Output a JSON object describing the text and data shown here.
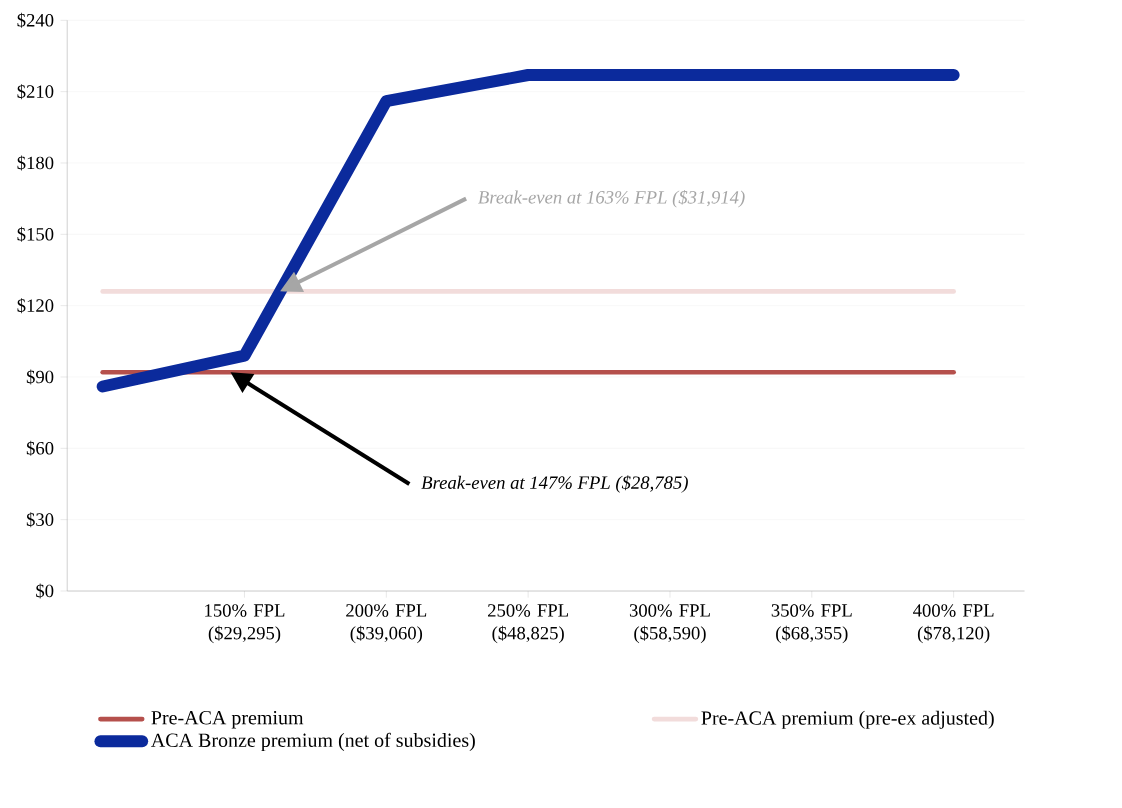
{
  "chart_data": {
    "type": "line",
    "categories": [
      null,
      "150% FPL ($29,295)",
      "200% FPL ($39,060)",
      "250% FPL ($48,825)",
      "300% FPL ($58,590)",
      "350% FPL ($68,355)",
      "400% FPL ($78,120)"
    ],
    "series": [
      {
        "name": "Pre-ACA premium",
        "color": "#b5504c",
        "values": [
          92,
          92,
          92,
          92,
          92,
          92,
          92
        ]
      },
      {
        "name": "Pre-ACA premium (pre-ex adjusted)",
        "color": "#f2dcdb",
        "values": [
          126,
          126,
          126,
          126,
          126,
          126,
          126
        ]
      },
      {
        "name": "ACA Bronze premium (net of subsidies)",
        "color": "#0b2a9c",
        "values": [
          86,
          99,
          206,
          217,
          217,
          217,
          217
        ]
      }
    ],
    "ylim": [
      0,
      240
    ],
    "yticks": [
      {
        "value": 0,
        "label": "$0"
      },
      {
        "value": 30,
        "label": "$30"
      },
      {
        "value": 60,
        "label": "$60"
      },
      {
        "value": 90,
        "label": "$90"
      },
      {
        "value": 120,
        "label": "$120"
      },
      {
        "value": 150,
        "label": "$150"
      },
      {
        "value": 180,
        "label": "$180"
      },
      {
        "value": 210,
        "label": "$210"
      },
      {
        "value": 240,
        "label": "$240"
      }
    ],
    "annotations": [
      "Break-even at 163% FPL ($31,914)",
      "Break-even at 147% FPL ($28,785)"
    ],
    "grid": "y",
    "legend": "bottom",
    "line_style": "solid"
  }
}
